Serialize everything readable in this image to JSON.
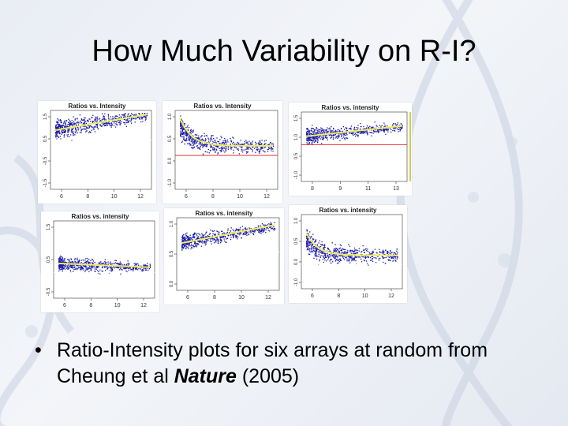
{
  "slide": {
    "title": "How Much Variability on R-I?"
  },
  "plots": [
    {
      "title": "Ratios vs. Intensity",
      "xticks": [
        "6",
        "8",
        "10",
        "12"
      ],
      "yticks": [
        "1.5",
        "0.5",
        "-0.5",
        "-1.5"
      ],
      "ref_line_color": "#ffffff",
      "has_outer_line": false
    },
    {
      "title": "Ratios vs. Intensity",
      "xticks": [
        "6",
        "8",
        "10",
        "12"
      ],
      "yticks": [
        "1.0",
        "0.5",
        "0.0",
        "-1.0"
      ],
      "ref_line_color": "#e03030",
      "has_outer_line": false
    },
    {
      "title": "Ratios vs. intensity",
      "xticks": [
        "8",
        "9",
        "11",
        "13"
      ],
      "yticks": [
        "1.5",
        "1.0",
        "0.5",
        "-1.0"
      ],
      "ref_line_color": "#e03030",
      "has_outer_line": true
    },
    {
      "title": "Ratios vs. intensity",
      "xticks": [
        "6",
        "8",
        "10",
        "12"
      ],
      "yticks": [
        "1.5",
        "0.5",
        "-0.5"
      ],
      "ref_line_color": "#ffffff",
      "has_outer_line": false
    },
    {
      "title": "Ratios vs. intensity",
      "xticks": [
        "6",
        "8",
        "10",
        "12"
      ],
      "yticks": [
        "1.0",
        "0.5",
        "0.0"
      ],
      "ref_line_color": "#ffffff",
      "has_outer_line": false
    },
    {
      "title": "Ratios vs. intensity",
      "xticks": [
        "6",
        "8",
        "10",
        "12"
      ],
      "yticks": [
        "1.0",
        "0.5",
        "0.0",
        "-1.0"
      ],
      "ref_line_color": "#ffffff",
      "has_outer_line": false
    }
  ],
  "bullet": {
    "dot": "•",
    "text_pre": "Ratio-Intensity plots for six arrays at random from Cheung et al ",
    "journal": "Nature",
    "text_post": " (2005)"
  },
  "colors": {
    "points": "#1a1aa8",
    "lowess": "#f0ee60"
  }
}
